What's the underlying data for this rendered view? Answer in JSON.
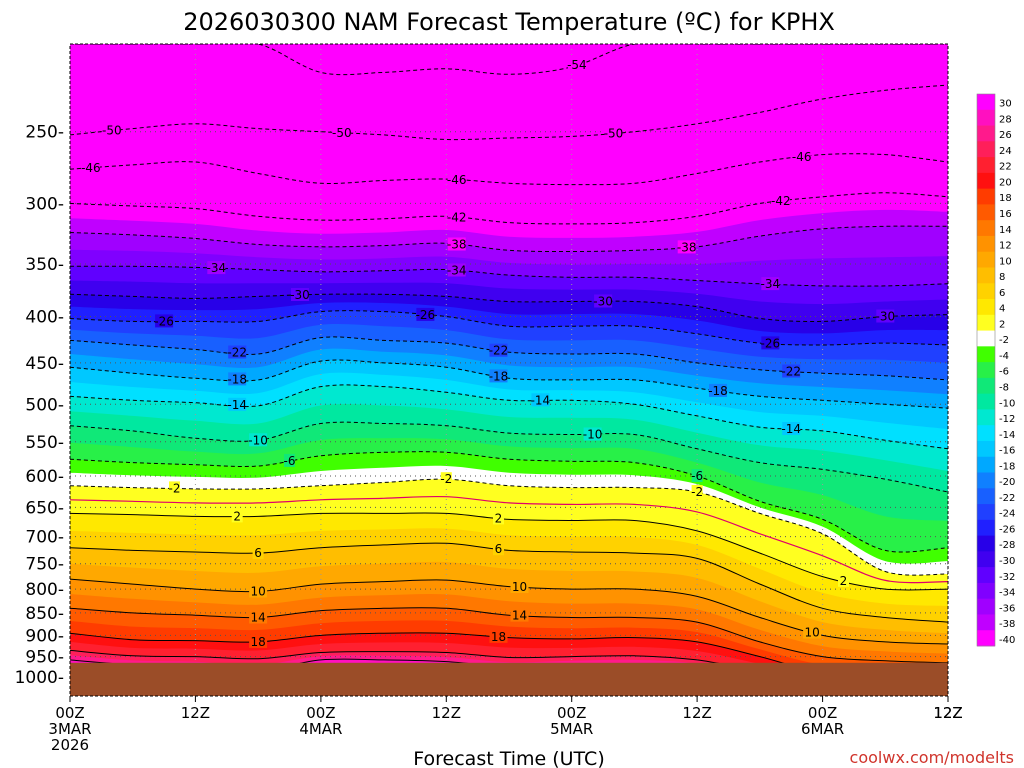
{
  "chart_data": {
    "type": "heatmap",
    "title": "2026030300 NAM Forecast Temperature (ºC) for KPHX",
    "xlabel": "Forecast Time (UTC)",
    "credit": "coolwx.com/modelts",
    "x_ticks": [
      {
        "hour": 0,
        "l1": "00Z",
        "l2": "3MAR",
        "l3": "2026"
      },
      {
        "hour": 12,
        "l1": "12Z",
        "l2": "",
        "l3": ""
      },
      {
        "hour": 24,
        "l1": "00Z",
        "l2": "4MAR",
        "l3": ""
      },
      {
        "hour": 36,
        "l1": "12Z",
        "l2": "",
        "l3": ""
      },
      {
        "hour": 48,
        "l1": "00Z",
        "l2": "5MAR",
        "l3": ""
      },
      {
        "hour": 60,
        "l1": "12Z",
        "l2": "",
        "l3": ""
      },
      {
        "hour": 72,
        "l1": "00Z",
        "l2": "6MAR",
        "l3": ""
      },
      {
        "hour": 84,
        "l1": "12Z",
        "l2": "",
        "l3": ""
      }
    ],
    "xlim": [
      0,
      84
    ],
    "y_ticks": [
      250,
      300,
      350,
      400,
      450,
      500,
      550,
      600,
      650,
      700,
      750,
      800,
      850,
      900,
      950,
      1000
    ],
    "ylim": [
      200,
      1050
    ],
    "yscale": "log",
    "y_label_format": "{}-",
    "grid": "dotted",
    "colorbar": {
      "placement": "right",
      "labels": [
        "30",
        "28",
        "26",
        "24",
        "22",
        "20",
        "18",
        "16",
        "14",
        "12",
        "10",
        "8",
        "6",
        "4",
        "2",
        "-2",
        "-4",
        "-6",
        "-8",
        "-10",
        "-12",
        "-14",
        "-16",
        "-18",
        "-20",
        "-22",
        "-24",
        "-26",
        "-28",
        "-30",
        "-32",
        "-34",
        "-36",
        "-38",
        "-40"
      ],
      "colors": [
        "#ff00ff",
        "#ff10c0",
        "#ff1a8c",
        "#ff1f5a",
        "#ff2030",
        "#ff1010",
        "#ff3c00",
        "#ff5a00",
        "#ff7800",
        "#ff9200",
        "#ffa800",
        "#ffbe00",
        "#ffd200",
        "#ffe800",
        "#ffff20",
        "#ffffff",
        "#40ff00",
        "#28f048",
        "#10e878",
        "#00e8a0",
        "#00e8d0",
        "#00e0ff",
        "#00c8ff",
        "#00a8ff",
        "#1080ff",
        "#1860ff",
        "#2040ff",
        "#2020ff",
        "#2800e8",
        "#4000f0",
        "#6000ff",
        "#8000ff",
        "#a000ff",
        "#c000ff",
        "#ff00ff"
      ]
    },
    "hours": [
      0,
      6,
      12,
      18,
      24,
      30,
      36,
      42,
      48,
      54,
      60,
      66,
      72,
      78,
      84
    ],
    "surface_pressure": 965,
    "isotherms": [
      {
        "temp": -54,
        "p": [
          200,
          200,
          200,
          200,
          215,
          215,
          213,
          216,
          212,
          200,
          200,
          200,
          200,
          200,
          200
        ]
      },
      {
        "temp": -50,
        "p": [
          252,
          248,
          245,
          248,
          250,
          252,
          255,
          254,
          253,
          250,
          245,
          238,
          230,
          225,
          222
        ]
      },
      {
        "temp": -46,
        "p": [
          275,
          272,
          270,
          278,
          285,
          283,
          282,
          285,
          286,
          285,
          278,
          270,
          265,
          265,
          270
        ]
      },
      {
        "temp": -42,
        "p": [
          300,
          302,
          304,
          310,
          313,
          312,
          310,
          315,
          316,
          315,
          310,
          300,
          295,
          292,
          295
        ]
      },
      {
        "temp": -38,
        "p": [
          323,
          325,
          328,
          333,
          335,
          334,
          332,
          338,
          339,
          338,
          335,
          326,
          320,
          318,
          318
        ]
      },
      {
        "temp": -34,
        "p": [
          352,
          352,
          353,
          355,
          357,
          356,
          355,
          360,
          362,
          362,
          365,
          368,
          370,
          370,
          368
        ]
      },
      {
        "temp": -30,
        "p": [
          378,
          380,
          382,
          380,
          378,
          378,
          380,
          385,
          385,
          385,
          390,
          402,
          405,
          400,
          398
        ]
      },
      {
        "temp": -26,
        "p": [
          402,
          405,
          405,
          405,
          395,
          395,
          400,
          410,
          410,
          410,
          418,
          428,
          430,
          428,
          430
        ]
      },
      {
        "temp": -22,
        "p": [
          425,
          430,
          435,
          440,
          422,
          425,
          428,
          438,
          440,
          440,
          450,
          458,
          462,
          465,
          470
        ]
      },
      {
        "temp": -18,
        "p": [
          455,
          462,
          468,
          470,
          448,
          450,
          455,
          468,
          470,
          470,
          480,
          490,
          495,
          500,
          505
        ]
      },
      {
        "temp": -14,
        "p": [
          490,
          495,
          498,
          502,
          478,
          478,
          485,
          495,
          495,
          500,
          515,
          530,
          535,
          548,
          560
        ]
      },
      {
        "temp": -10,
        "p": [
          528,
          535,
          545,
          548,
          525,
          525,
          528,
          538,
          540,
          540,
          560,
          580,
          590,
          605,
          625
        ]
      },
      {
        "temp": -6,
        "p": [
          575,
          580,
          583,
          585,
          570,
          565,
          565,
          575,
          578,
          580,
          600,
          640,
          670,
          725,
          720
        ]
      },
      {
        "temp": -2,
        "p": [
          615,
          618,
          620,
          620,
          615,
          610,
          605,
          615,
          618,
          618,
          625,
          660,
          695,
          765,
          770
        ]
      },
      {
        "temp": 2,
        "p": [
          660,
          662,
          665,
          665,
          660,
          660,
          660,
          670,
          672,
          672,
          690,
          730,
          775,
          800,
          800
        ]
      },
      {
        "temp": 6,
        "p": [
          720,
          725,
          728,
          730,
          720,
          715,
          712,
          725,
          728,
          730,
          740,
          790,
          840,
          860,
          870
        ]
      },
      {
        "temp": 10,
        "p": [
          780,
          790,
          800,
          805,
          790,
          785,
          782,
          795,
          800,
          800,
          815,
          860,
          900,
          915,
          920
        ]
      },
      {
        "temp": 14,
        "p": [
          840,
          850,
          855,
          860,
          845,
          840,
          840,
          855,
          860,
          860,
          870,
          915,
          950,
          960,
          965
        ]
      },
      {
        "temp": 18,
        "p": [
          895,
          910,
          912,
          915,
          900,
          895,
          895,
          905,
          908,
          905,
          915,
          950,
          990,
          995,
          995
        ]
      },
      {
        "temp": 22,
        "p": [
          935,
          948,
          950,
          955,
          940,
          938,
          940,
          952,
          950,
          948,
          958,
          985,
          1000,
          1000,
          1000
        ]
      },
      {
        "temp": 26,
        "p": [
          958,
          970,
          975,
          985,
          958,
          958,
          962,
          975,
          970,
          968,
          975,
          1000,
          1000,
          1000,
          1000
        ]
      },
      {
        "temp": 30,
        "p": [
          975,
          990,
          995,
          1000,
          980,
          978,
          982,
          995,
          990,
          990,
          995,
          1000,
          1000,
          1000,
          1000
        ]
      }
    ],
    "contour_labels": [
      {
        "temp": -54,
        "hour": 48.5
      },
      {
        "temp": -50,
        "hour": 4
      },
      {
        "temp": -50,
        "hour": 26
      },
      {
        "temp": -50,
        "hour": 52
      },
      {
        "temp": -46,
        "hour": 2
      },
      {
        "temp": -46,
        "hour": 37
      },
      {
        "temp": -46,
        "hour": 70
      },
      {
        "temp": -42,
        "hour": 37
      },
      {
        "temp": -42,
        "hour": 68
      },
      {
        "temp": -38,
        "hour": 37
      },
      {
        "temp": -38,
        "hour": 59
      },
      {
        "temp": -34,
        "hour": 14
      },
      {
        "temp": -34,
        "hour": 37
      },
      {
        "temp": -34,
        "hour": 67
      },
      {
        "temp": -30,
        "hour": 22
      },
      {
        "temp": -30,
        "hour": 51
      },
      {
        "temp": -30,
        "hour": 78
      },
      {
        "temp": -26,
        "hour": 9
      },
      {
        "temp": -26,
        "hour": 34
      },
      {
        "temp": -26,
        "hour": 67
      },
      {
        "temp": -22,
        "hour": 16
      },
      {
        "temp": -22,
        "hour": 41
      },
      {
        "temp": -22,
        "hour": 69
      },
      {
        "temp": -18,
        "hour": 16
      },
      {
        "temp": -18,
        "hour": 41
      },
      {
        "temp": -18,
        "hour": 62
      },
      {
        "temp": -14,
        "hour": 16
      },
      {
        "temp": -14,
        "hour": 45
      },
      {
        "temp": -14,
        "hour": 69
      },
      {
        "temp": -10,
        "hour": 18
      },
      {
        "temp": -10,
        "hour": 50
      },
      {
        "temp": -6,
        "hour": 21
      },
      {
        "temp": -6,
        "hour": 60
      },
      {
        "temp": -2,
        "hour": 10
      },
      {
        "temp": -2,
        "hour": 36
      },
      {
        "temp": -2,
        "hour": 60
      },
      {
        "temp": 2,
        "hour": 16
      },
      {
        "temp": 2,
        "hour": 41
      },
      {
        "temp": 2,
        "hour": 74
      },
      {
        "temp": 6,
        "hour": 18
      },
      {
        "temp": 6,
        "hour": 41
      },
      {
        "temp": 10,
        "hour": 18
      },
      {
        "temp": 10,
        "hour": 43
      },
      {
        "temp": 10,
        "hour": 71
      },
      {
        "temp": 14,
        "hour": 18
      },
      {
        "temp": 14,
        "hour": 43
      },
      {
        "temp": 18,
        "hour": 18
      },
      {
        "temp": 18,
        "hour": 41
      }
    ]
  }
}
